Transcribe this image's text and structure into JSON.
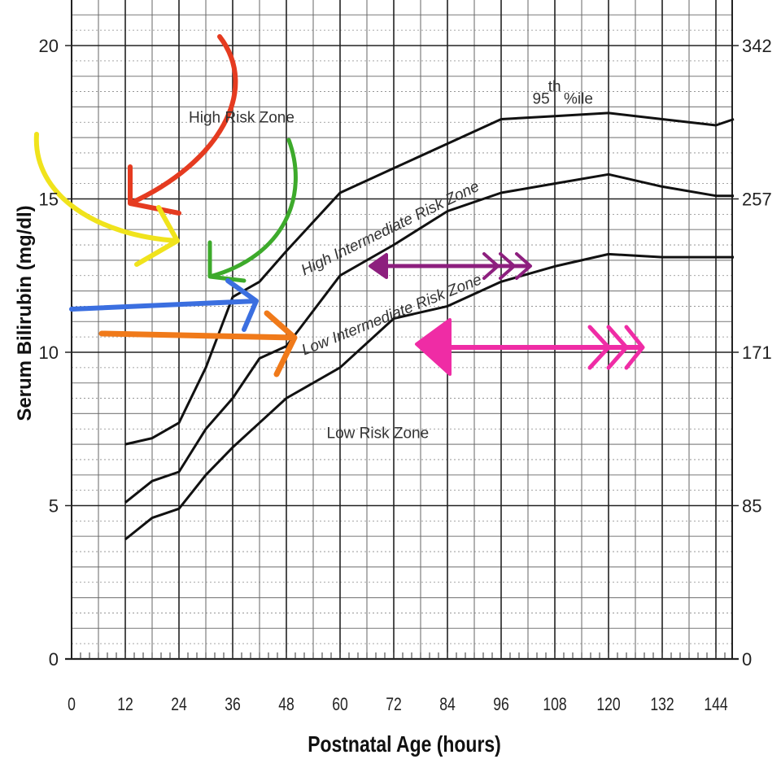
{
  "chart_data": {
    "type": "line",
    "xlabel": "Postnatal Age (hours)",
    "ylabel": "Serum Bilirubin (mg/dl)",
    "xlim": [
      0,
      148
    ],
    "ylim": [
      0,
      20
    ],
    "x_ticks": [
      "0",
      "12",
      "24",
      "36",
      "48",
      "60",
      "72",
      "84",
      "96",
      "108",
      "120",
      "132",
      "144"
    ],
    "y_ticks": [
      "0",
      "5",
      "10",
      "15",
      "20"
    ],
    "y2_ticks": [
      "0",
      "85",
      "171",
      "257",
      "342"
    ],
    "grid": true,
    "series": [
      {
        "name": "95th%ile",
        "x": [
          12,
          18,
          24,
          30,
          36,
          42,
          48,
          60,
          72,
          84,
          96,
          108,
          120,
          132,
          144,
          148
        ],
        "y": [
          7.0,
          7.2,
          7.7,
          9.5,
          11.8,
          12.3,
          13.3,
          15.2,
          16.0,
          16.8,
          17.6,
          17.7,
          17.8,
          17.6,
          17.4,
          17.6
        ]
      },
      {
        "name": "",
        "x": [
          12,
          18,
          24,
          30,
          36,
          42,
          48,
          60,
          72,
          84,
          96,
          108,
          120,
          132,
          144,
          148
        ],
        "y": [
          5.1,
          5.8,
          6.1,
          7.5,
          8.5,
          9.8,
          10.2,
          12.5,
          13.5,
          14.6,
          15.2,
          15.5,
          15.8,
          15.4,
          15.1,
          15.1
        ]
      },
      {
        "name": "",
        "x": [
          12,
          18,
          24,
          30,
          36,
          42,
          48,
          60,
          72,
          84,
          96,
          108,
          120,
          132,
          144,
          148
        ],
        "y": [
          3.9,
          4.6,
          4.9,
          6.0,
          6.9,
          7.7,
          8.5,
          9.5,
          11.1,
          11.5,
          12.3,
          12.8,
          13.2,
          13.1,
          13.1,
          13.1
        ]
      }
    ],
    "annotations": [
      {
        "text": "95",
        "x": 103,
        "y": 18.1
      },
      {
        "text": "th",
        "x": 106.5,
        "y": 18.5
      },
      {
        "text": "%ile",
        "x": 110,
        "y": 18.1
      },
      {
        "text": "High Risk Zone",
        "x": 38,
        "y": 17.5
      },
      {
        "text": "High Intermediate Risk Zone",
        "x": 52,
        "y": 12.5,
        "rotate": -26
      },
      {
        "text": "Low Intermediate Risk Zone",
        "x": 52,
        "y": 9.9,
        "rotate": -22
      },
      {
        "text": "Low Risk Zone",
        "x": 57,
        "y": 7.2
      }
    ]
  }
}
